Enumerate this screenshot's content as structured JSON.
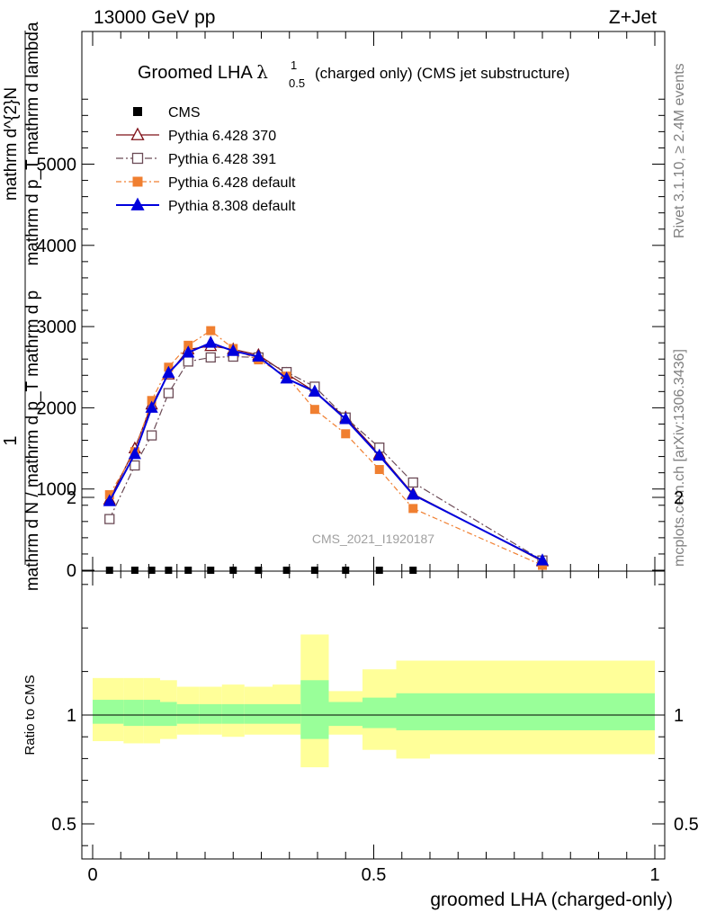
{
  "header": {
    "left": "13000 GeV pp",
    "right": "Z+Jet"
  },
  "side_labels": {
    "rivet": "Rivet 3.1.10, ≥ 2.4M events",
    "mcplots": "mcplots.cern.ch [arXiv:1306.3436]"
  },
  "watermark": "CMS_2021_I1920187",
  "chart_data": [
    {
      "type": "line",
      "title_main": "Groomed LHA ",
      "title_symbol": "λ",
      "title_sup": "1",
      "title_sub": "0.5",
      "title_rest": " (charged only) (CMS jet substructure)",
      "ylabel": {
        "numerator": "1",
        "denominator": "mathrm d N / mathrm d p_T mathrm d p",
        "right_num": "mathrm d^{2}N",
        "right_den": "mathrm d p_T mathrm d lambda"
      },
      "ylabel_text": "1 / mathrm d N / mathrm d p mathrm d p_T mathrm d^{2}N / mathrm d p_T mathrm d lambda",
      "xlim": [
        0,
        1
      ],
      "ylim": [
        0,
        6000
      ],
      "y_ticks": [
        "0",
        "1000",
        "2000",
        "3000",
        "4000",
        "5000"
      ],
      "y_tick_values": [
        0,
        1000,
        2000,
        3000,
        4000,
        5000
      ],
      "x_tick_values": [
        0,
        0.5,
        1
      ],
      "x": [
        0.03,
        0.075,
        0.105,
        0.135,
        0.17,
        0.21,
        0.25,
        0.295,
        0.345,
        0.395,
        0.45,
        0.51,
        0.57,
        0.8
      ],
      "legend_position": "top-left",
      "series": [
        {
          "name": "CMS",
          "color": "#000000",
          "marker": "square-filled",
          "values": [
            0,
            0,
            0,
            0,
            0,
            0,
            0,
            0,
            0,
            0,
            0,
            0,
            0,
            null
          ]
        },
        {
          "name": "Pythia 6.428 370",
          "color": "#7f1018",
          "marker": "triangle-open",
          "values": [
            870,
            1500,
            2040,
            2410,
            2720,
            2760,
            2720,
            2650,
            2420,
            2200,
            1880,
            1430,
            940,
            110
          ]
        },
        {
          "name": "Pythia 6.428 391",
          "color": "#6b4a55",
          "marker": "square-open",
          "values": [
            630,
            1290,
            1660,
            2180,
            2570,
            2620,
            2630,
            2620,
            2440,
            2260,
            1880,
            1510,
            1080,
            120
          ]
        },
        {
          "name": "Pythia 6.428 default",
          "color": "#f07f30",
          "marker": "square-filled",
          "values": [
            930,
            1460,
            2090,
            2500,
            2770,
            2950,
            2730,
            2590,
            2390,
            1980,
            1680,
            1240,
            760,
            60
          ]
        },
        {
          "name": "Pythia 8.308 default",
          "color": "#0000dd",
          "marker": "triangle-filled",
          "values": [
            850,
            1430,
            2000,
            2430,
            2680,
            2800,
            2700,
            2630,
            2360,
            2200,
            1860,
            1410,
            930,
            120
          ]
        }
      ]
    },
    {
      "type": "area",
      "ylabel": "Ratio to CMS",
      "xlabel": "groomed LHA (charged-only)",
      "xlim": [
        0,
        1
      ],
      "ylim": [
        0.3,
        2.25
      ],
      "y_ticks": [
        "0.5",
        "1",
        "2"
      ],
      "y_tick_values": [
        0.5,
        1,
        2
      ],
      "x_ticks": [
        "0",
        "0.5",
        "1"
      ],
      "x_tick_values": [
        0,
        0.5,
        1
      ],
      "bin_edges": [
        0,
        0.055,
        0.09,
        0.12,
        0.15,
        0.19,
        0.23,
        0.27,
        0.32,
        0.37,
        0.42,
        0.48,
        0.54,
        0.6,
        1
      ],
      "band_inner": [
        [
          0.96,
          1.07
        ],
        [
          0.95,
          1.07
        ],
        [
          0.95,
          1.07
        ],
        [
          0.95,
          1.06
        ],
        [
          0.96,
          1.05
        ],
        [
          0.96,
          1.05
        ],
        [
          0.96,
          1.05
        ],
        [
          0.96,
          1.05
        ],
        [
          0.96,
          1.05
        ],
        [
          0.89,
          1.16
        ],
        [
          0.95,
          1.06
        ],
        [
          0.94,
          1.08
        ],
        [
          0.93,
          1.1
        ],
        [
          0.93,
          1.1
        ]
      ],
      "band_outer": [
        [
          0.88,
          1.17
        ],
        [
          0.87,
          1.17
        ],
        [
          0.87,
          1.17
        ],
        [
          0.89,
          1.16
        ],
        [
          0.91,
          1.13
        ],
        [
          0.91,
          1.13
        ],
        [
          0.9,
          1.14
        ],
        [
          0.91,
          1.13
        ],
        [
          0.91,
          1.14
        ],
        [
          0.76,
          1.37
        ],
        [
          0.91,
          1.11
        ],
        [
          0.84,
          1.21
        ],
        [
          0.8,
          1.25
        ],
        [
          0.82,
          1.25
        ]
      ],
      "band_colors": {
        "inner": "#99ff99",
        "outer": "#ffff99"
      }
    }
  ]
}
